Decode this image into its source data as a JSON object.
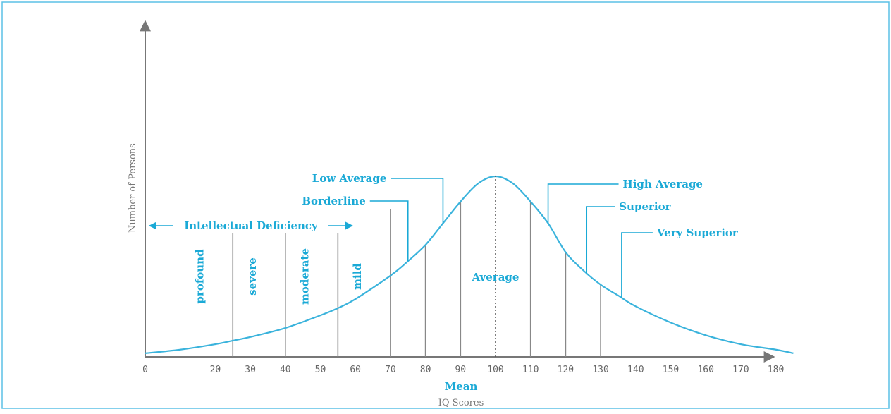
{
  "chart_data": {
    "type": "line",
    "xlabel": "IQ Scores",
    "ylabel": "Number of Persons",
    "x_ticks": [
      "0",
      "20",
      "30",
      "40",
      "50",
      "60",
      "70",
      "80",
      "90",
      "100",
      "110",
      "120",
      "130",
      "140",
      "150",
      "160",
      "170",
      "180"
    ],
    "mean_value": 100,
    "mean_label": "Mean",
    "curve": {
      "name": "",
      "x": [
        0,
        10,
        20,
        25,
        30,
        40,
        50,
        55,
        60,
        70,
        75,
        80,
        85,
        90,
        95,
        100,
        105,
        110,
        115,
        120,
        125,
        130,
        135,
        140,
        150,
        160,
        170,
        180,
        185
      ],
      "y": [
        0.02,
        0.04,
        0.07,
        0.09,
        0.11,
        0.16,
        0.23,
        0.27,
        0.32,
        0.45,
        0.53,
        0.62,
        0.74,
        0.86,
        0.96,
        1.0,
        0.96,
        0.86,
        0.74,
        0.58,
        0.48,
        0.4,
        0.34,
        0.28,
        0.19,
        0.12,
        0.07,
        0.04,
        0.02
      ]
    },
    "dividers": [
      25,
      40,
      55,
      70,
      80,
      90,
      110,
      120,
      130
    ],
    "band_labels": [
      {
        "text": "profound",
        "x": 17
      },
      {
        "text": "severe",
        "x": 32
      },
      {
        "text": "moderate",
        "x": 47
      },
      {
        "text": "mild",
        "x": 62
      },
      {
        "text": "Average",
        "x": 100
      }
    ],
    "callouts": [
      {
        "text": "Low Average",
        "x": 85
      },
      {
        "text": "Borderline",
        "x": 75
      },
      {
        "text": "High Average",
        "x": 115
      },
      {
        "text": "Superior",
        "x": 126
      },
      {
        "text": "Very Superior",
        "x": 136
      }
    ],
    "range_label": "Intellectual Deficiency"
  }
}
